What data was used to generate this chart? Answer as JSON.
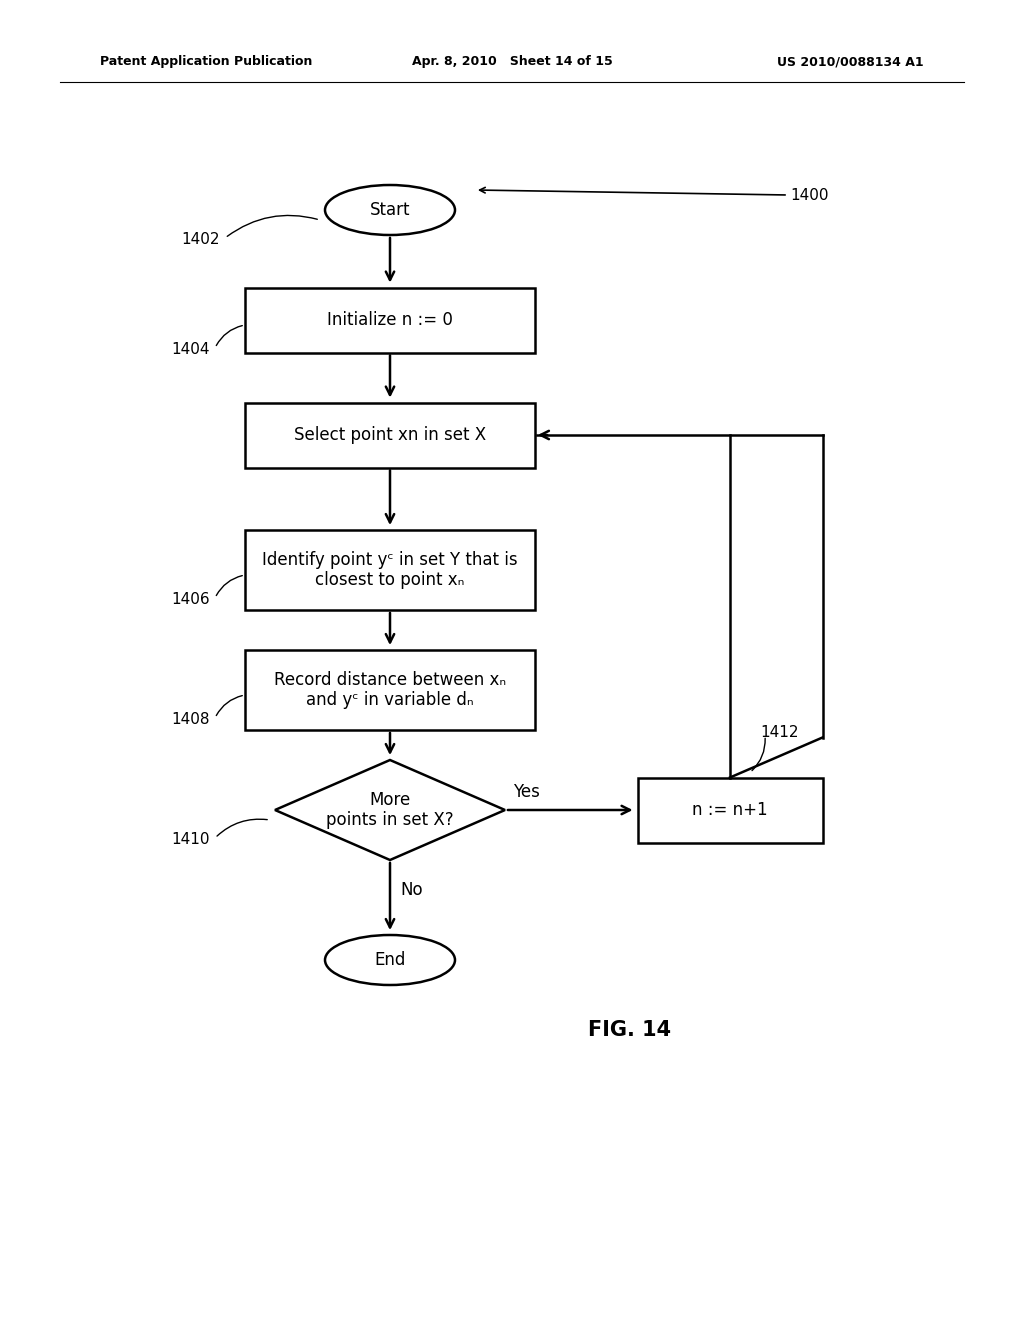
{
  "bg_color": "#ffffff",
  "header_left": "Patent Application Publication",
  "header_mid": "Apr. 8, 2010   Sheet 14 of 15",
  "header_right": "US 2010/0088134 A1",
  "fig_label": "FIG. 14",
  "start_label": "Start",
  "end_label": "End",
  "init_label": "Initialize n := 0",
  "select_label_line1": "Select point x",
  "select_label_sub": "n",
  "select_label_line2": " in set X",
  "identify_label": "Identify point yᶜ in set Y that is\nclosest to point xₙ",
  "record_label": "Record distance between xₙ\nand yᶜ in variable dₙ",
  "diamond_label": "More\npoints in set X?",
  "nplus1_label": "n := n+1",
  "yes_label": "Yes",
  "no_label": "No",
  "ref_1400": "1400",
  "ref_1402": "1402",
  "ref_1404": "1404",
  "ref_1406": "1406",
  "ref_1408": "1408",
  "ref_1410": "1410",
  "ref_1412": "1412",
  "font_size_node": 12,
  "font_size_label": 11,
  "font_size_header": 9,
  "font_size_fig": 15,
  "lw": 1.8
}
